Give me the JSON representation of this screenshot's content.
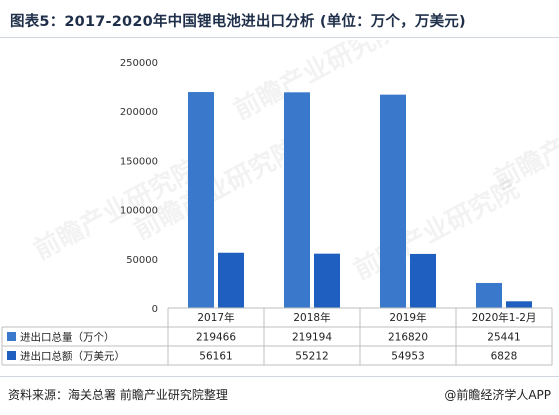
{
  "title": "图表5：2017-2020年中国锂电池进出口分析 (单位：万个，万美元)",
  "footer": {
    "source": "资料来源：海关总署 前瞻产业研究院整理",
    "brand": "@前瞻经济学人APP"
  },
  "watermark": "前瞻产业研究院",
  "colors": {
    "series1": "#3a78cc",
    "series2": "#1f5fbf",
    "grid": "#d9d9d9"
  },
  "chart_data": {
    "type": "bar",
    "categories": [
      "2017年",
      "2018年",
      "2019年",
      "2020年1-2月"
    ],
    "series": [
      {
        "name": "进出口总量（万个）",
        "values": [
          219466,
          219194,
          216820,
          25441
        ]
      },
      {
        "name": "进出口总额（万美元）",
        "values": [
          56161,
          55212,
          54953,
          6828
        ]
      }
    ],
    "yticks": [
      "0",
      "50000",
      "100000",
      "150000",
      "200000",
      "250000"
    ],
    "ylim": [
      0,
      250000
    ],
    "grid": false,
    "legend": "data-table"
  }
}
